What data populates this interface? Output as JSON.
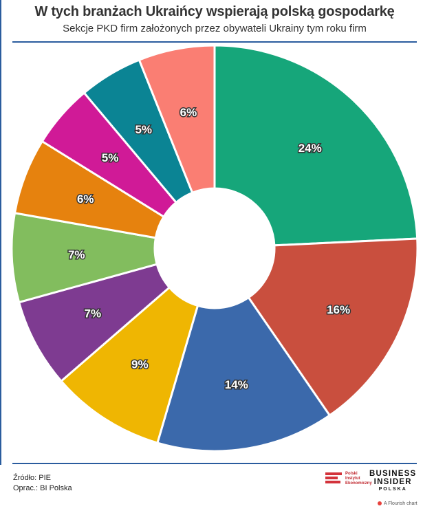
{
  "header": {
    "title": "W tych branżach Ukraińcy wspierają polską gospodarkę",
    "subtitle": "Sekcje PKD firm założonych przez obywateli Ukrainy tym roku firm"
  },
  "chart_data": {
    "type": "pie",
    "title": "W tych branżach Ukraińcy wspierają polską gospodarkę",
    "subtitle": "Sekcje PKD firm założonych przez obywateli Ukrainy tym roku firm",
    "donut": true,
    "legend": "none",
    "slices": [
      {
        "value": 24,
        "label": "24%",
        "color": "#16a67a"
      },
      {
        "value": 16,
        "label": "16%",
        "color": "#c94f3e"
      },
      {
        "value": 14,
        "label": "14%",
        "color": "#3b69ab"
      },
      {
        "value": 9,
        "label": "9%",
        "color": "#efb602"
      },
      {
        "value": 7,
        "label": "7%",
        "color": "#7e3b91"
      },
      {
        "value": 7,
        "label": "7%",
        "color": "#82bd5e"
      },
      {
        "value": 6,
        "label": "6%",
        "color": "#e6820e"
      },
      {
        "value": 5,
        "label": "5%",
        "color": "#d01a97"
      },
      {
        "value": 5,
        "label": "5%",
        "color": "#0b8494"
      },
      {
        "value": 6,
        "label": "6%",
        "color": "#fa7e73"
      }
    ]
  },
  "footer": {
    "source": "Źródło: PIE",
    "author": "Oprac.: BI Polska",
    "pie_logo_text": [
      "Polski",
      "Instytut",
      "Ekonomiczny"
    ],
    "bi_logo": [
      "BUSINESS",
      "INSIDER",
      "POLSKA"
    ],
    "flourish": "A Flourish chart",
    "flourish_color": "#e8413c"
  }
}
